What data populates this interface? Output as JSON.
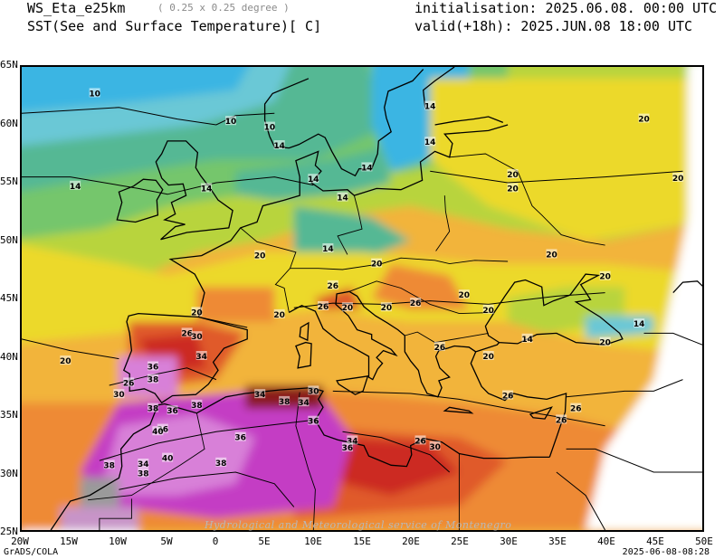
{
  "header": {
    "model": "WS_Eta_e25km",
    "resolution": "( 0.25 x 0.25 degree )",
    "variable": "SST(See and Surface Temperature)[ C]",
    "initialisation": "initialisation: 2025.06.08. 00:00 UTC",
    "valid": "valid(+18h): 2025.JUN.08 18:00 UTC"
  },
  "axes": {
    "lat_labels": [
      "65N",
      "60N",
      "55N",
      "50N",
      "45N",
      "40N",
      "35N",
      "30N",
      "25N"
    ],
    "lon_labels": [
      "20W",
      "15W",
      "10W",
      "5W",
      "0",
      "5E",
      "10E",
      "15E",
      "20E",
      "25E",
      "30E",
      "35E",
      "40E",
      "45E",
      "50E"
    ]
  },
  "contour_labels": [
    {
      "text": "10",
      "lon": -12.5,
      "lat": 62.7
    },
    {
      "text": "10",
      "lon": 1.5,
      "lat": 60.3
    },
    {
      "text": "10",
      "lon": 5.5,
      "lat": 59.8
    },
    {
      "text": "14",
      "lon": 6.5,
      "lat": 58.2
    },
    {
      "text": "14",
      "lon": -14.5,
      "lat": 54.7
    },
    {
      "text": "14",
      "lon": -1.0,
      "lat": 54.5
    },
    {
      "text": "14",
      "lon": 10.0,
      "lat": 55.3
    },
    {
      "text": "14",
      "lon": 15.5,
      "lat": 56.3
    },
    {
      "text": "14",
      "lon": 13.0,
      "lat": 53.7
    },
    {
      "text": "14",
      "lon": 22.0,
      "lat": 61.6
    },
    {
      "text": "14",
      "lon": 22.0,
      "lat": 58.5
    },
    {
      "text": "14",
      "lon": 11.5,
      "lat": 49.3
    },
    {
      "text": "20",
      "lon": 44.0,
      "lat": 60.5
    },
    {
      "text": "20",
      "lon": 30.5,
      "lat": 55.7
    },
    {
      "text": "20",
      "lon": 30.5,
      "lat": 54.5
    },
    {
      "text": "20",
      "lon": 47.5,
      "lat": 55.4
    },
    {
      "text": "20",
      "lon": 34.5,
      "lat": 48.8
    },
    {
      "text": "20",
      "lon": 40.0,
      "lat": 46.9
    },
    {
      "text": "20",
      "lon": 4.5,
      "lat": 48.7
    },
    {
      "text": "20",
      "lon": 16.5,
      "lat": 48.0
    },
    {
      "text": "20",
      "lon": 25.5,
      "lat": 45.3
    },
    {
      "text": "20",
      "lon": 28.0,
      "lat": 44.0
    },
    {
      "text": "20",
      "lon": 13.5,
      "lat": 44.2
    },
    {
      "text": "20",
      "lon": 17.5,
      "lat": 44.2
    },
    {
      "text": "20",
      "lon": 6.5,
      "lat": 43.6
    },
    {
      "text": "20",
      "lon": -2.0,
      "lat": 43.8
    },
    {
      "text": "20",
      "lon": -15.5,
      "lat": 39.6
    },
    {
      "text": "20",
      "lon": 28.0,
      "lat": 40.0
    },
    {
      "text": "20",
      "lon": 40.0,
      "lat": 41.2
    },
    {
      "text": "14",
      "lon": 32.0,
      "lat": 41.5
    },
    {
      "text": "14",
      "lon": 43.5,
      "lat": 42.8
    },
    {
      "text": "26",
      "lon": -3.0,
      "lat": 42.0
    },
    {
      "text": "26",
      "lon": 20.5,
      "lat": 44.6
    },
    {
      "text": "26",
      "lon": 12.0,
      "lat": 46.1
    },
    {
      "text": "26",
      "lon": 11.0,
      "lat": 44.3
    },
    {
      "text": "26",
      "lon": 23.0,
      "lat": 40.8
    },
    {
      "text": "26",
      "lon": 30.0,
      "lat": 36.6
    },
    {
      "text": "26",
      "lon": 35.5,
      "lat": 34.5
    },
    {
      "text": "26",
      "lon": 37.0,
      "lat": 35.5
    },
    {
      "text": "26",
      "lon": 21.0,
      "lat": 32.7
    },
    {
      "text": "26",
      "lon": -9.0,
      "lat": 37.7
    },
    {
      "text": "30",
      "lon": -2.0,
      "lat": 41.7
    },
    {
      "text": "30",
      "lon": -10.0,
      "lat": 36.7
    },
    {
      "text": "30",
      "lon": 22.5,
      "lat": 32.2
    },
    {
      "text": "30",
      "lon": 10.0,
      "lat": 37.0
    },
    {
      "text": "34",
      "lon": -1.5,
      "lat": 40.0
    },
    {
      "text": "34",
      "lon": 4.5,
      "lat": 36.7
    },
    {
      "text": "34",
      "lon": 9.0,
      "lat": 36.0
    },
    {
      "text": "34",
      "lon": 14.0,
      "lat": 32.7
    },
    {
      "text": "34",
      "lon": -7.5,
      "lat": 30.7
    },
    {
      "text": "36",
      "lon": -6.5,
      "lat": 39.1
    },
    {
      "text": "36",
      "lon": 10.0,
      "lat": 34.4
    },
    {
      "text": "36",
      "lon": -4.5,
      "lat": 35.3
    },
    {
      "text": "36",
      "lon": -5.5,
      "lat": 33.7
    },
    {
      "text": "36",
      "lon": 2.5,
      "lat": 33.0
    },
    {
      "text": "36",
      "lon": 13.5,
      "lat": 32.1
    },
    {
      "text": "38",
      "lon": -6.5,
      "lat": 38.0
    },
    {
      "text": "38",
      "lon": 7.0,
      "lat": 36.1
    },
    {
      "text": "38",
      "lon": -2.0,
      "lat": 35.8
    },
    {
      "text": "38",
      "lon": -6.5,
      "lat": 35.5
    },
    {
      "text": "38",
      "lon": 0.5,
      "lat": 30.8
    },
    {
      "text": "38",
      "lon": -7.5,
      "lat": 29.9
    },
    {
      "text": "38",
      "lon": -11.0,
      "lat": 30.6
    },
    {
      "text": "40",
      "lon": -6.0,
      "lat": 33.5
    },
    {
      "text": "40",
      "lon": -5.0,
      "lat": 31.2
    }
  ],
  "footer": {
    "left": "GrADS/COLA",
    "right": "2025-06-08-08:28",
    "watermark": "Hydrological and Meteorological service of Montenegro"
  },
  "colors": {
    "ocean_cold": "#3bb5e3",
    "ocean_cool": "#6bc8d6",
    "green_teal": "#55b894",
    "green": "#74c66c",
    "yellow_green": "#b8d43c",
    "yellow": "#ecd92a",
    "light_orange": "#f2b43a",
    "orange": "#ee8a36",
    "red_orange": "#e05a2c",
    "red": "#cc2a22",
    "dark_red": "#8b1a1a",
    "magenta": "#c43cc4",
    "violet": "#d880d8",
    "light_violet": "#c894c8",
    "gray": "#9a9a9a"
  }
}
